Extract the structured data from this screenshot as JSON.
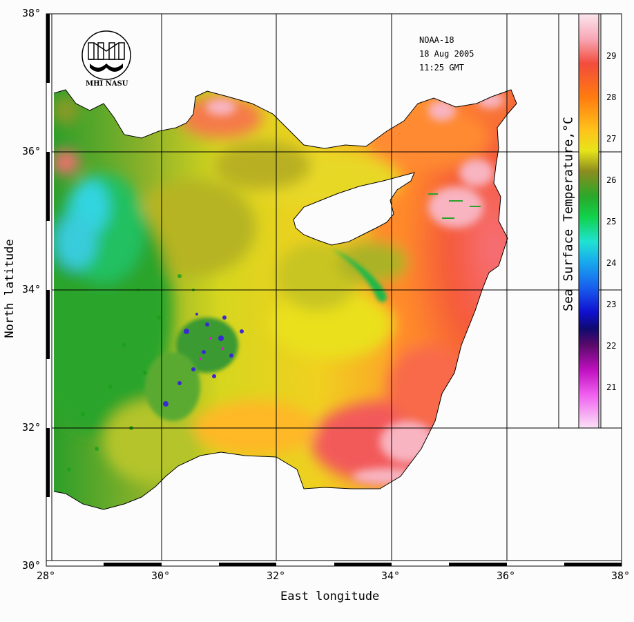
{
  "satellite": "NOAA-18",
  "date": "18 Aug 2005",
  "time": "11:25 GMT",
  "logo_text": "MHI NASU",
  "x_axis_title": "East longitude",
  "y_axis_title": "North latitude",
  "colorbar_title": "Sea Surface Temperature,°C",
  "lon_labels": [
    "28°",
    "30°",
    "32°",
    "34°",
    "36°",
    "38°"
  ],
  "lat_labels": [
    "38°",
    "36°",
    "34°",
    "32°",
    "30°"
  ],
  "colorbar_labels": [
    "29",
    "28",
    "27",
    "26",
    "25",
    "24",
    "23",
    "22",
    "21"
  ],
  "map_extent": {
    "lon_min": 28,
    "lon_max": 38,
    "lat_min": 30,
    "lat_max": 38
  },
  "colorbar_range": {
    "min": 20,
    "max": 30
  },
  "colors": {
    "land": "#fcfcfc",
    "warm_pink": "#f06060",
    "orange": "#ff7a2a",
    "yellow": "#e8e21a",
    "olive": "#9c9c26",
    "green": "#1fa81f",
    "cyan": "#33ddee",
    "blue": "#2020dd",
    "magenta": "#dd22dd"
  }
}
